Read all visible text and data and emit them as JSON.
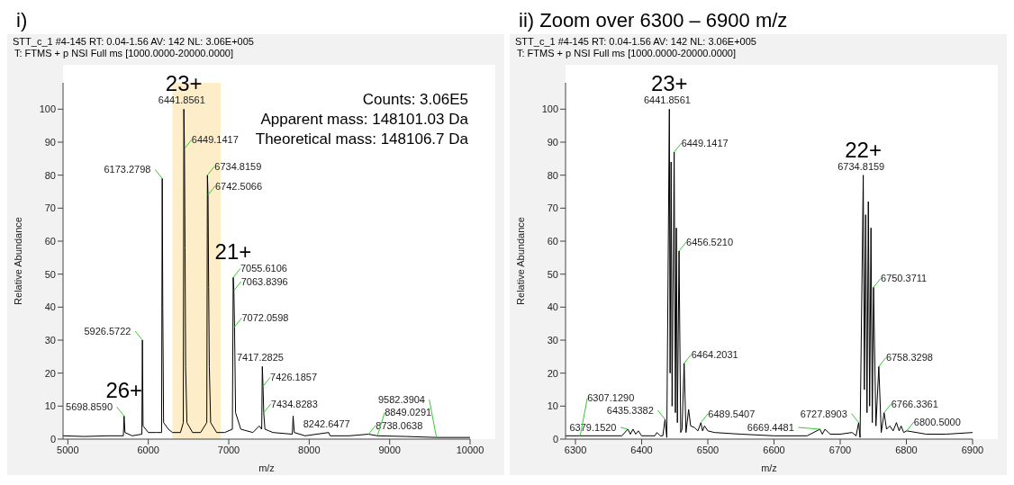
{
  "chart_data": [
    {
      "type": "line",
      "title": "i)",
      "subtitle": "STT_c_1 #4-145  RT: 0.04-1.56 AV: 142 NL: 3.06E+005\nT: FTMS + p NSI Full ms [1000.0000-20000.0000]",
      "xlabel": "m/z",
      "ylabel": "Relative Abundance",
      "xlim": [
        4940,
        10000
      ],
      "xticks": [
        5000,
        6000,
        7000,
        8000,
        9000,
        10000
      ],
      "ylim": [
        0,
        108
      ],
      "yticks": [
        0,
        10,
        20,
        30,
        40,
        50,
        60,
        70,
        80,
        90,
        100
      ],
      "bands": [
        {
          "axis": "x",
          "from": 6300,
          "to": 6900,
          "color": "#fdedc8"
        }
      ],
      "series": [
        {
          "color": "#000000",
          "x": [
            4940,
            5200,
            5500,
            5690,
            5698.859,
            5710,
            5800,
            5920,
            5926.5722,
            5935,
            6000,
            6100,
            6165,
            6173.2798,
            6180,
            6190,
            6250,
            6300,
            6400,
            6435,
            6441.8561,
            6449.1417,
            6456.521,
            6464.2031,
            6480,
            6550,
            6650,
            6727,
            6734.8159,
            6742.5066,
            6750.3711,
            6758.3298,
            6775,
            6850,
            6950,
            7045,
            7055.6106,
            7063.8396,
            7072.0598,
            7085,
            7150,
            7300,
            7380,
            7410,
            7417.2825,
            7426.1857,
            7434.8283,
            7450,
            7550,
            7790,
            7800,
            7815,
            7950,
            8242.6477,
            8260,
            8500,
            8738.0638,
            8849.0291,
            9200,
            9582.3904,
            10000
          ],
          "values": [
            1,
            0.8,
            1,
            1,
            7,
            2,
            1,
            1.5,
            30,
            4,
            2,
            2,
            2,
            79,
            40,
            5,
            3,
            2,
            2,
            5,
            100,
            88,
            58,
            22,
            5,
            2,
            2,
            5,
            80,
            74,
            46,
            22,
            5,
            2,
            2,
            3,
            49,
            45,
            34,
            8,
            3,
            2,
            4,
            3,
            22,
            16,
            8,
            3,
            2,
            1.5,
            7,
            2,
            1,
            2,
            1,
            1,
            1.5,
            1,
            0.8,
            0.5,
            0.5
          ]
        }
      ],
      "annotations": [
        "Counts: 3.06E5",
        "Apparent mass: 148101.03 Da",
        "Theoretical mass: 148106.7 Da",
        {
          "text": "23+",
          "x": 6441.8561,
          "y": 100
        },
        {
          "text": "21+",
          "x": 7055.6106,
          "y": 49
        },
        {
          "text": "26+",
          "x": 5698.859,
          "y": 7
        },
        {
          "text": "6441.8561",
          "x": 6441.8561,
          "y": 100
        },
        {
          "text": "6449.1417",
          "x": 6449.1417,
          "y": 88
        },
        {
          "text": "6734.8159",
          "x": 6734.8159,
          "y": 80
        },
        {
          "text": "6173.2798",
          "x": 6173.2798,
          "y": 79
        },
        {
          "text": "6742.5066",
          "x": 6742.5066,
          "y": 74
        },
        {
          "text": "7055.6106",
          "x": 7055.6106,
          "y": 49
        },
        {
          "text": "7063.8396",
          "x": 7063.8396,
          "y": 45
        },
        {
          "text": "7072.0598",
          "x": 7072.0598,
          "y": 34
        },
        {
          "text": "5926.5722",
          "x": 5926.5722,
          "y": 30
        },
        {
          "text": "7417.2825",
          "x": 7417.2825,
          "y": 22
        },
        {
          "text": "7426.1857",
          "x": 7426.1857,
          "y": 16
        },
        {
          "text": "7434.8283",
          "x": 7434.8283,
          "y": 8
        },
        {
          "text": "5698.8590",
          "x": 5698.859,
          "y": 7
        },
        {
          "text": "8242.6477",
          "x": 8242.6477,
          "y": 2
        },
        {
          "text": "8738.0638",
          "x": 8738.0638,
          "y": 1.5
        },
        {
          "text": "8849.0291",
          "x": 8849.0291,
          "y": 1
        },
        {
          "text": "9582.3904",
          "x": 9582.3904,
          "y": 0.5
        }
      ]
    },
    {
      "type": "line",
      "title": "ii)  Zoom over 6300 – 6900 m/z",
      "subtitle": "STT_c_1 #4-145  RT: 0.04-1.56 AV: 142 NL: 3.06E+005\nT: FTMS + p NSI Full ms [1000.0000-20000.0000]",
      "xlabel": "m/z",
      "ylabel": "Relative Abundance",
      "xlim": [
        6285,
        6900
      ],
      "xticks": [
        6300,
        6400,
        6500,
        6600,
        6700,
        6800,
        6900
      ],
      "ylim": [
        0,
        108
      ],
      "yticks": [
        0,
        10,
        20,
        30,
        40,
        50,
        60,
        70,
        80,
        90,
        100
      ],
      "series": [
        {
          "color": "#000000",
          "x": [
            6285,
            6307.129,
            6370,
            6379.152,
            6383,
            6387,
            6391,
            6395,
            6400,
            6420,
            6423,
            6428,
            6432,
            6435.3382,
            6438,
            6441.8561,
            6443,
            6444.5,
            6446,
            6449.1417,
            6451,
            6452.5,
            6454,
            6456.521,
            6459,
            6461,
            6464.2031,
            6467,
            6471,
            6474,
            6480,
            6485,
            6489.5407,
            6492,
            6495,
            6500,
            6510,
            6550,
            6600,
            6650,
            6669.4481,
            6673,
            6677,
            6685,
            6700,
            6718,
            6724,
            6727.8903,
            6730,
            6734.8159,
            6736.5,
            6738.5,
            6740.5,
            6742.5066,
            6744.5,
            6746.5,
            6748.5,
            6750.3711,
            6754,
            6758.3298,
            6762,
            6766.3361,
            6770,
            6775,
            6780,
            6785,
            6789,
            6792,
            6796,
            6800.5,
            6830,
            6860,
            6900
          ],
          "values": [
            1,
            1,
            1,
            3,
            1.5,
            3,
            1.5,
            2.5,
            1,
            1,
            2,
            1,
            1,
            6,
            0.5,
            100,
            20,
            84,
            10,
            87,
            8,
            64,
            5,
            57,
            2,
            3,
            23,
            2,
            9,
            4,
            3.5,
            2.5,
            5,
            2.5,
            4,
            2.5,
            2,
            1.5,
            1,
            1,
            3,
            1.5,
            3,
            1.5,
            1.5,
            2,
            1,
            5,
            0.5,
            80,
            15,
            68,
            8,
            72,
            10,
            64,
            5,
            46,
            4,
            22,
            2,
            8,
            3,
            4,
            2.5,
            5,
            2.5,
            4,
            2,
            2.5,
            1.5,
            1.5,
            2
          ]
        }
      ],
      "annotations": [
        {
          "text": "23+",
          "x": 6441.8561,
          "y": 100
        },
        {
          "text": "22+",
          "x": 6734.8159,
          "y": 80
        },
        {
          "text": "6441.8561",
          "x": 6441.8561,
          "y": 100
        },
        {
          "text": "6449.1417",
          "x": 6449.1417,
          "y": 87
        },
        {
          "text": "6734.8159",
          "x": 6734.8159,
          "y": 80
        },
        {
          "text": "6456.5210",
          "x": 6456.521,
          "y": 57
        },
        {
          "text": "6750.3711",
          "x": 6750.3711,
          "y": 46
        },
        {
          "text": "6464.2031",
          "x": 6464.2031,
          "y": 23
        },
        {
          "text": "6758.3298",
          "x": 6758.3298,
          "y": 22
        },
        {
          "text": "6766.3361",
          "x": 6766.3361,
          "y": 8
        },
        {
          "text": "6435.3382",
          "x": 6435.3382,
          "y": 6
        },
        {
          "text": "6727.8903",
          "x": 6727.8903,
          "y": 5
        },
        {
          "text": "6489.5407",
          "x": 6489.5407,
          "y": 5
        },
        {
          "text": "6379.1520",
          "x": 6379.152,
          "y": 3
        },
        {
          "text": "6669.4481",
          "x": 6669.4481,
          "y": 3
        },
        {
          "text": "6800.5000",
          "x": 6800.5,
          "y": 2.5
        },
        {
          "text": "6307.1290",
          "x": 6307.129,
          "y": 1
        }
      ]
    }
  ]
}
